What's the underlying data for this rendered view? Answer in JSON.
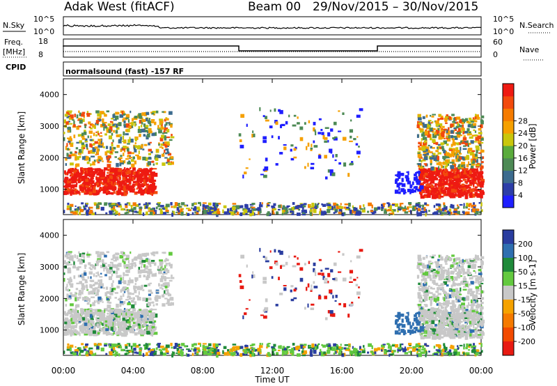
{
  "header": {
    "station": "Adak West (fitACF)",
    "beam": "Beam 00",
    "dates": "29/Nov/2015 – 30/Nov/2015"
  },
  "summary_panels": {
    "nsky_label": "N.Sky",
    "nsearch_label": "N.Search",
    "noise_ticks": [
      "10^5",
      "10^0"
    ],
    "freq_label_line1": "Freq.",
    "freq_label_line2": "[MHz]",
    "freq_ticks": [
      "18",
      "8"
    ],
    "nave_label": "Nave",
    "nave_ticks": [
      "60",
      "0"
    ],
    "cpid_label": "CPID",
    "cpid_text": "normalsound (fast) -157 RF"
  },
  "chart_data": [
    {
      "type": "heatmap",
      "name_on_chart": "Power [dB]",
      "ylabel": "Slant Range [km]",
      "yticks": [
        1000,
        2000,
        3000,
        4000
      ],
      "ylim": [
        200,
        4500
      ],
      "colorbar": {
        "label": "Power [dB]",
        "ticks": [
          "4",
          "8",
          "12",
          "16",
          "20",
          "24",
          "28"
        ],
        "colors": [
          "#1f1fff",
          "#2d3ea8",
          "#3c6b8e",
          "#4d8a55",
          "#5aab3c",
          "#c9c60c",
          "#f5a000",
          "#f57b00",
          "#f24a0d",
          "#ee1a12"
        ]
      },
      "regions": [
        {
          "t": [
            0.0,
            5.2
          ],
          "range_km": [
            900,
            1700
          ],
          "value": "high"
        },
        {
          "t": [
            0.0,
            6.2
          ],
          "range_km": [
            1800,
            3500
          ],
          "value": "mixed"
        },
        {
          "t": [
            20.4,
            24.0
          ],
          "range_km": [
            800,
            1700
          ],
          "value": "high"
        },
        {
          "t": [
            20.3,
            24.0
          ],
          "range_km": [
            1700,
            3400
          ],
          "value": "mixed"
        }
      ]
    },
    {
      "type": "heatmap",
      "name_on_chart": "Velocity [m s^-1]",
      "ylabel": "Slant Range [km]",
      "yticks": [
        1000,
        2000,
        3000,
        4000
      ],
      "ylim": [
        200,
        4500
      ],
      "colorbar": {
        "label": "Velocity [m s-1]",
        "ticks": [
          "200",
          "100",
          "50",
          "15",
          "-15",
          "-50",
          "-100",
          "-200"
        ],
        "colors": [
          "#2a3d9f",
          "#2f6fb0",
          "#1f8a3a",
          "#63c93f",
          "#c8c8c8",
          "#f5a200",
          "#f57a00",
          "#f24a00",
          "#e81a12"
        ]
      }
    }
  ],
  "time_axis": {
    "label": "Time UT",
    "ticks": [
      "00:00",
      "04:00",
      "08:00",
      "12:00",
      "16:00",
      "20:00",
      "00:00"
    ]
  }
}
